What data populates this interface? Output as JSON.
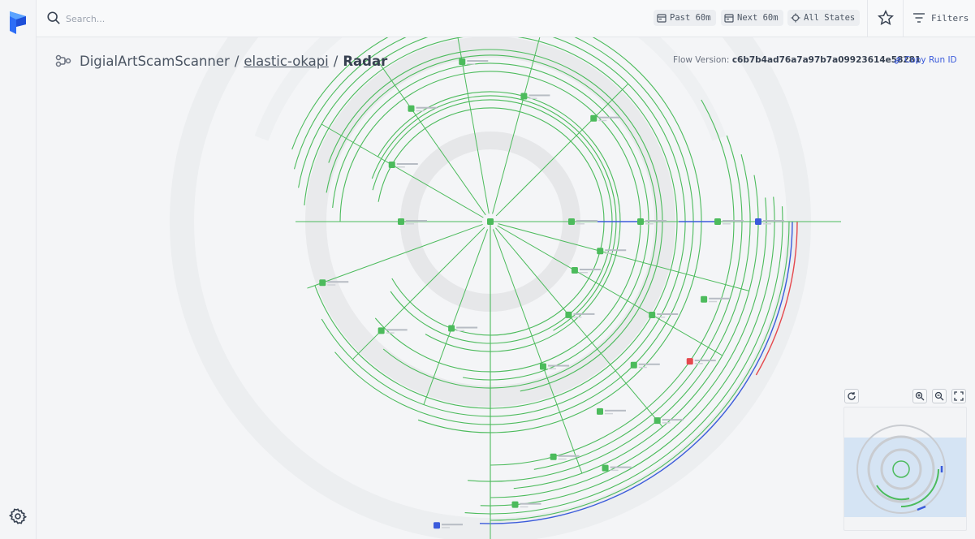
{
  "search": {
    "placeholder": "Search..."
  },
  "topbar": {
    "chips": [
      {
        "label": "Past 60m",
        "icon": "calendar-icon"
      },
      {
        "label": "Next 60m",
        "icon": "calendar-icon"
      },
      {
        "label": "All States",
        "icon": "target-icon"
      }
    ],
    "filters_label": "Filters"
  },
  "breadcrumb": {
    "flow": "DigialArtScamScanner",
    "run": "elastic-okapi",
    "page": "Radar",
    "sep": "/"
  },
  "flow_version": {
    "label": "Flow Version:",
    "value": "c6b7b4ad76a7a97b7a09923614e58281"
  },
  "copy_run": {
    "label": "Copy Run ID"
  },
  "colors": {
    "completed": "#4cbb5c",
    "running": "#3b5bdb",
    "failed": "#e5484d",
    "accent": "#3b5bdb"
  },
  "icons": [
    "prefect-logo-icon",
    "search-icon",
    "star-icon",
    "filter-icon",
    "flow-icon",
    "link-icon",
    "gear-icon",
    "refresh-icon",
    "zoom-in-icon",
    "zoom-out-icon",
    "fullscreen-icon"
  ]
}
